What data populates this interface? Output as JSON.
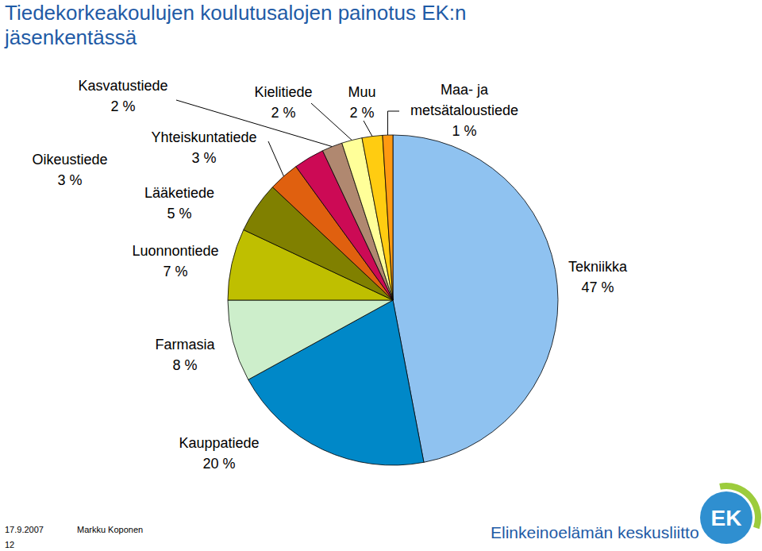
{
  "chart_data": {
    "type": "pie",
    "title": "Tiedekorkeakoulujen koulutusalojen painotus EK:n jäsenkentässä",
    "categories": [
      "Tekniikka",
      "Kauppatiede",
      "Farmasia",
      "Luonnontiede",
      "Lääketiede",
      "Yhteiskuntatiede",
      "Oikeustiede",
      "Kasvatustiede",
      "Kielitiede",
      "Muu",
      "Maa- ja metsätaloustiede"
    ],
    "values": [
      47,
      20,
      8,
      7,
      5,
      3,
      3,
      2,
      2,
      2,
      1
    ],
    "value_labels": [
      "47 %",
      "20 %",
      "8 %",
      "7 %",
      "5 %",
      "3 %",
      "3 %",
      "2 %",
      "2 %",
      "2 %",
      "1 %"
    ],
    "colors": [
      "#8fc2f0",
      "#0088c8",
      "#cdeecb",
      "#bfbf00",
      "#808000",
      "#e0600f",
      "#cc0a55",
      "#b08870",
      "#ffff99",
      "#ffcc11",
      "#ff9911"
    ],
    "data_labels": true
  },
  "footer": {
    "date": "17.9.2007",
    "author": "Markku Koponen",
    "page": "12",
    "organization": "Elinkeinoelämän keskusliitto",
    "logo": "EK"
  }
}
